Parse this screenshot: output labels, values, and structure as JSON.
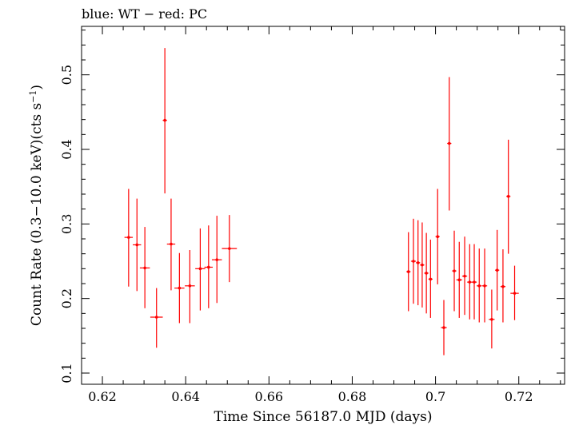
{
  "chart_data": {
    "type": "scatter",
    "title": "blue: WT − red: PC",
    "xlabel": "Time Since 56187.0 MJD (days)",
    "ylabel_parts": {
      "main": "Count Rate (0.3−10.0 keV)(cts s",
      "superscript": "−1",
      "close": ")"
    },
    "xlim": [
      0.615,
      0.731
    ],
    "ylim": [
      0.085,
      0.565
    ],
    "x_ticks": [
      {
        "value": 0.62,
        "label": "0.62"
      },
      {
        "value": 0.64,
        "label": "0.64"
      },
      {
        "value": 0.66,
        "label": "0.66"
      },
      {
        "value": 0.68,
        "label": "0.68"
      },
      {
        "value": 0.7,
        "label": "0.70"
      },
      {
        "value": 0.72,
        "label": "0.72"
      }
    ],
    "x_tick_labels": [
      "0.62",
      "0.64",
      "0.66",
      "0.68",
      "0.7",
      "0.72"
    ],
    "y_ticks": [
      {
        "value": 0.1,
        "label": "0.1"
      },
      {
        "value": 0.2,
        "label": "0.2"
      },
      {
        "value": 0.3,
        "label": "0.3"
      },
      {
        "value": 0.4,
        "label": "0.4"
      },
      {
        "value": 0.5,
        "label": "0.5"
      }
    ],
    "y_tick_labels": [
      "0.1",
      "0.2",
      "0.3",
      "0.4",
      "0.5"
    ],
    "grid": false,
    "series": [
      {
        "color": "#ff0000",
        "points": [
          {
            "x": 0.6263,
            "xerr": 0.001,
            "y": 0.282,
            "ylo": 0.216,
            "yhi": 0.347
          },
          {
            "x": 0.6283,
            "xerr": 0.001,
            "y": 0.272,
            "ylo": 0.21,
            "yhi": 0.334
          },
          {
            "x": 0.6302,
            "xerr": 0.0012,
            "y": 0.241,
            "ylo": 0.187,
            "yhi": 0.296
          },
          {
            "x": 0.633,
            "xerr": 0.0015,
            "y": 0.175,
            "ylo": 0.134,
            "yhi": 0.214
          },
          {
            "x": 0.635,
            "xerr": 0.0005,
            "y": 0.439,
            "ylo": 0.341,
            "yhi": 0.536
          },
          {
            "x": 0.6365,
            "xerr": 0.001,
            "y": 0.273,
            "ylo": 0.211,
            "yhi": 0.334
          },
          {
            "x": 0.6385,
            "xerr": 0.0012,
            "y": 0.214,
            "ylo": 0.167,
            "yhi": 0.261
          },
          {
            "x": 0.641,
            "xerr": 0.0012,
            "y": 0.217,
            "ylo": 0.167,
            "yhi": 0.265
          },
          {
            "x": 0.6435,
            "xerr": 0.0012,
            "y": 0.24,
            "ylo": 0.184,
            "yhi": 0.294
          },
          {
            "x": 0.6455,
            "xerr": 0.001,
            "y": 0.242,
            "ylo": 0.187,
            "yhi": 0.298
          },
          {
            "x": 0.6475,
            "xerr": 0.0012,
            "y": 0.252,
            "ylo": 0.194,
            "yhi": 0.311
          },
          {
            "x": 0.6505,
            "xerr": 0.0018,
            "y": 0.267,
            "ylo": 0.222,
            "yhi": 0.312
          },
          {
            "x": 0.6935,
            "xerr": 0.0005,
            "y": 0.236,
            "ylo": 0.183,
            "yhi": 0.289
          },
          {
            "x": 0.6947,
            "xerr": 0.0006,
            "y": 0.25,
            "ylo": 0.193,
            "yhi": 0.307
          },
          {
            "x": 0.6958,
            "xerr": 0.0005,
            "y": 0.248,
            "ylo": 0.191,
            "yhi": 0.305
          },
          {
            "x": 0.6968,
            "xerr": 0.0005,
            "y": 0.245,
            "ylo": 0.188,
            "yhi": 0.302
          },
          {
            "x": 0.6978,
            "xerr": 0.0005,
            "y": 0.234,
            "ylo": 0.18,
            "yhi": 0.288
          },
          {
            "x": 0.6988,
            "xerr": 0.0005,
            "y": 0.226,
            "ylo": 0.174,
            "yhi": 0.279
          },
          {
            "x": 0.7005,
            "xerr": 0.0005,
            "y": 0.283,
            "ylo": 0.219,
            "yhi": 0.347
          },
          {
            "x": 0.702,
            "xerr": 0.0007,
            "y": 0.161,
            "ylo": 0.124,
            "yhi": 0.198
          },
          {
            "x": 0.7033,
            "xerr": 0.0005,
            "y": 0.408,
            "ylo": 0.318,
            "yhi": 0.497
          },
          {
            "x": 0.7045,
            "xerr": 0.0005,
            "y": 0.237,
            "ylo": 0.183,
            "yhi": 0.291
          },
          {
            "x": 0.7057,
            "xerr": 0.0007,
            "y": 0.225,
            "ylo": 0.174,
            "yhi": 0.276
          },
          {
            "x": 0.707,
            "xerr": 0.0006,
            "y": 0.23,
            "ylo": 0.178,
            "yhi": 0.283
          },
          {
            "x": 0.7082,
            "xerr": 0.0006,
            "y": 0.222,
            "ylo": 0.172,
            "yhi": 0.273
          },
          {
            "x": 0.7093,
            "xerr": 0.0006,
            "y": 0.222,
            "ylo": 0.172,
            "yhi": 0.273
          },
          {
            "x": 0.7105,
            "xerr": 0.0006,
            "y": 0.217,
            "ylo": 0.168,
            "yhi": 0.267
          },
          {
            "x": 0.7118,
            "xerr": 0.0006,
            "y": 0.217,
            "ylo": 0.168,
            "yhi": 0.267
          },
          {
            "x": 0.7135,
            "xerr": 0.0007,
            "y": 0.172,
            "ylo": 0.133,
            "yhi": 0.212
          },
          {
            "x": 0.7148,
            "xerr": 0.0005,
            "y": 0.238,
            "ylo": 0.184,
            "yhi": 0.292
          },
          {
            "x": 0.7162,
            "xerr": 0.0006,
            "y": 0.216,
            "ylo": 0.168,
            "yhi": 0.266
          },
          {
            "x": 0.7175,
            "xerr": 0.0005,
            "y": 0.337,
            "ylo": 0.26,
            "yhi": 0.413
          },
          {
            "x": 0.719,
            "xerr": 0.001,
            "y": 0.207,
            "ylo": 0.171,
            "yhi": 0.244
          }
        ]
      }
    ]
  }
}
